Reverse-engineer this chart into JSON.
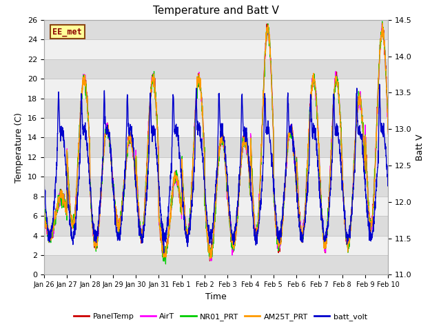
{
  "title": "Temperature and Batt V",
  "xlabel": "Time",
  "ylabel_left": "Temperature (C)",
  "ylabel_right": "Batt V",
  "watermark": "EE_met",
  "ylim_left": [
    0,
    26
  ],
  "ylim_right": [
    11.0,
    14.5
  ],
  "yticks_left": [
    0,
    2,
    4,
    6,
    8,
    10,
    12,
    14,
    16,
    18,
    20,
    22,
    24,
    26
  ],
  "yticks_right": [
    11.0,
    11.5,
    12.0,
    12.5,
    13.0,
    13.5,
    14.0,
    14.5
  ],
  "xtick_labels": [
    "Jan 26",
    "Jan 27",
    "Jan 28",
    "Jan 29",
    "Jan 30",
    "Jan 31",
    "Feb 1",
    "Feb 2",
    "Feb 3",
    "Feb 4",
    "Feb 5",
    "Feb 6",
    "Feb 7",
    "Feb 8",
    "Feb 9",
    "Feb 10"
  ],
  "series_colors": {
    "PanelTemp": "#cc0000",
    "AirT": "#ff00ff",
    "NR01_PRT": "#00cc00",
    "AM25T_PRT": "#ff9900",
    "batt_volt": "#0000cc"
  },
  "background_color": "#ffffff",
  "plot_bg_light": "#f0f0f0",
  "plot_bg_dark": "#dcdcdc",
  "grid_color": "#c8c8c8",
  "num_days": 15,
  "ppd": 144,
  "seed": 12345
}
